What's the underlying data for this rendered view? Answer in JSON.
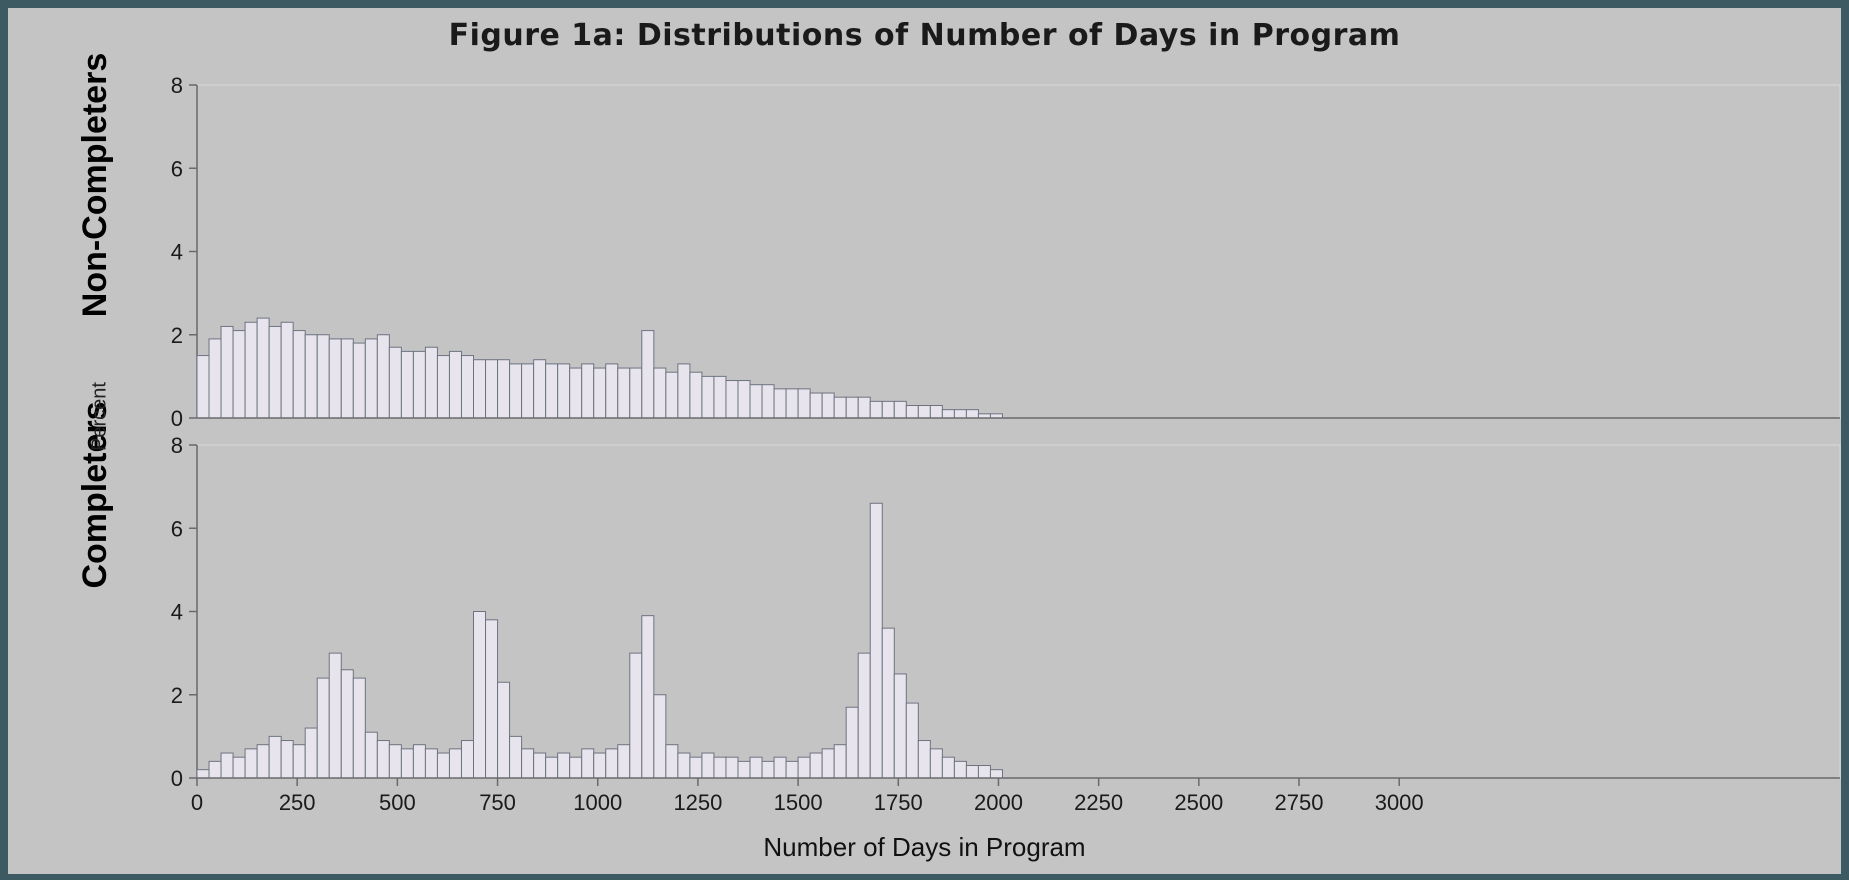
{
  "chart_data": {
    "type": "bar",
    "title": "Figure 1a: Distributions of Number of Days in Program",
    "xlabel": "Number of Days in Program",
    "ylabel": "Percent",
    "xlim": [
      0,
      4100
    ],
    "ylim": [
      0,
      8
    ],
    "x_ticks": [
      "0",
      "250",
      "500",
      "750",
      "1000",
      "1250",
      "1500",
      "1750",
      "2000",
      "2250",
      "2500",
      "2750",
      "3000"
    ],
    "y_ticks": [
      "0",
      "2",
      "4",
      "6",
      "8"
    ],
    "bin_width": 30,
    "panels": [
      {
        "name": "Non-Completers",
        "bins": [
          15,
          45,
          75,
          105,
          135,
          165,
          195,
          225,
          255,
          285,
          315,
          345,
          375,
          405,
          435,
          465,
          495,
          525,
          555,
          585,
          615,
          645,
          675,
          705,
          735,
          765,
          795,
          825,
          855,
          885,
          915,
          945,
          975,
          1005,
          1035,
          1065,
          1095,
          1125,
          1155,
          1185,
          1215,
          1245,
          1275,
          1305,
          1335,
          1365,
          1395,
          1425,
          1455,
          1485,
          1515,
          1545,
          1575,
          1605,
          1635,
          1665,
          1695,
          1725,
          1755,
          1785,
          1815,
          1845,
          1875,
          1905,
          1935,
          1965,
          1995
        ],
        "values": [
          1.5,
          1.9,
          2.2,
          2.1,
          2.3,
          2.4,
          2.2,
          2.3,
          2.1,
          2.0,
          2.0,
          1.9,
          1.9,
          1.8,
          1.9,
          2.0,
          1.7,
          1.6,
          1.6,
          1.7,
          1.5,
          1.6,
          1.5,
          1.4,
          1.4,
          1.4,
          1.3,
          1.3,
          1.4,
          1.3,
          1.3,
          1.2,
          1.3,
          1.2,
          1.3,
          1.2,
          1.2,
          2.1,
          1.2,
          1.1,
          1.3,
          1.1,
          1.0,
          1.0,
          0.9,
          0.9,
          0.8,
          0.8,
          0.7,
          0.7,
          0.7,
          0.6,
          0.6,
          0.5,
          0.5,
          0.5,
          0.4,
          0.4,
          0.4,
          0.3,
          0.3,
          0.3,
          0.2,
          0.2,
          0.2,
          0.1,
          0.1
        ]
      },
      {
        "name": "Completers",
        "bins": [
          15,
          45,
          75,
          105,
          135,
          165,
          195,
          225,
          255,
          285,
          315,
          345,
          375,
          405,
          435,
          465,
          495,
          525,
          555,
          585,
          615,
          645,
          675,
          705,
          735,
          765,
          795,
          825,
          855,
          885,
          915,
          945,
          975,
          1005,
          1035,
          1065,
          1095,
          1125,
          1155,
          1185,
          1215,
          1245,
          1275,
          1305,
          1335,
          1365,
          1395,
          1425,
          1455,
          1485,
          1515,
          1545,
          1575,
          1605,
          1635,
          1665,
          1695,
          1725,
          1755,
          1785,
          1815,
          1845,
          1875,
          1905,
          1935,
          1965,
          1995
        ],
        "values": [
          0.2,
          0.4,
          0.6,
          0.5,
          0.7,
          0.8,
          1.0,
          0.9,
          0.8,
          1.2,
          2.4,
          3.0,
          2.6,
          2.4,
          1.1,
          0.9,
          0.8,
          0.7,
          0.8,
          0.7,
          0.6,
          0.7,
          0.9,
          4.0,
          3.8,
          2.3,
          1.0,
          0.7,
          0.6,
          0.5,
          0.6,
          0.5,
          0.7,
          0.6,
          0.7,
          0.8,
          3.0,
          3.9,
          2.0,
          0.8,
          0.6,
          0.5,
          0.6,
          0.5,
          0.5,
          0.4,
          0.5,
          0.4,
          0.5,
          0.4,
          0.5,
          0.6,
          0.7,
          0.8,
          1.7,
          3.0,
          6.6,
          3.6,
          2.5,
          1.8,
          0.9,
          0.7,
          0.5,
          0.4,
          0.3,
          0.3,
          0.2
        ]
      }
    ],
    "colors": {
      "bar_fill": "#e8e4ee",
      "bar_edge": "#6d7380",
      "axis": "#6a6a6a",
      "background": "#c4c4c4"
    }
  }
}
